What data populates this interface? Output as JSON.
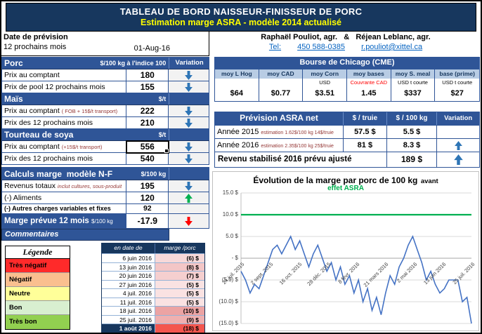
{
  "colors": {
    "navy": "#17375E",
    "blue": "#2F5597",
    "arrow_blue": "#2E75B6",
    "green": "#00B050",
    "red": "#FF0000",
    "yellow": "#FFFF00"
  },
  "header": {
    "title": "TABLEAU DE BORD NAISSEUR-FINISSEUR DE PORC",
    "subtitle": "Estimation marge ASRA - modèle 2014 actualisé"
  },
  "forecast": {
    "label": "Date de prévision",
    "period": "12 prochains mois",
    "date": "01-Aug-16"
  },
  "price_table": {
    "variation_header": "Variation",
    "sections": [
      {
        "title": "Porc",
        "unit": "$/100 kg à l'indice 100",
        "rows": [
          {
            "label": "Prix au comptant",
            "note": "",
            "value": "180",
            "arrow": "down"
          },
          {
            "label": "Prix de pool 12 prochains mois",
            "note": "",
            "value": "155",
            "arrow": "down"
          }
        ]
      },
      {
        "title": "Maïs",
        "unit": "$/t",
        "rows": [
          {
            "label": "Prix au comptant",
            "note": "( FOB + 15$/t transport)",
            "value": "222",
            "arrow": "down"
          },
          {
            "label": "Prix des 12 prochains mois",
            "note": "",
            "value": "210",
            "arrow": "down"
          }
        ]
      },
      {
        "title": "Tourteau de soya",
        "unit": "$/t",
        "rows": [
          {
            "label": "Prix au comptant",
            "note": "(+15$/t transport)",
            "value": "556",
            "arrow": "down"
          },
          {
            "label": "Prix des 12 prochains mois",
            "note": "",
            "value": "540",
            "arrow": "down"
          }
        ]
      }
    ]
  },
  "calc_table": {
    "title": "Calculs marge  modèle N-F",
    "unit": "$/100 kg",
    "rows": [
      {
        "label": "Revenus totaux",
        "note": "inclut cultures, sous-produit",
        "value": "195",
        "arrow": "down"
      },
      {
        "label": "(-) Aliments",
        "note": "",
        "value": "120",
        "arrow": "up"
      },
      {
        "label": "(-) Autres charges variables et fixes",
        "note": "",
        "value": "92",
        "arrow": ""
      }
    ],
    "marge_row": {
      "label": "Marge prévue 12 mois",
      "unit": "$/100 kg",
      "value": "-17.9",
      "arrow": "down"
    }
  },
  "commentaires_label": "Commentaires",
  "legend": {
    "title": "Légende",
    "items": [
      {
        "label": "Très négatif",
        "color": "#FF2A2A"
      },
      {
        "label": "Négatif",
        "color": "#FABF8F"
      },
      {
        "label": "Neutre",
        "color": "#FFFF99"
      },
      {
        "label": "Bon",
        "color": "#D8EFD0"
      },
      {
        "label": "Très bon",
        "color": "#92D050"
      }
    ]
  },
  "marge_history": {
    "date_header": "en date de",
    "value_header": "marge /porc",
    "rows": [
      {
        "date": "6 juin 2016",
        "value": "(6) $",
        "shade": "#F7D9D9"
      },
      {
        "date": "13 juin 2016",
        "value": "(8) $",
        "shade": "#F3C6C6"
      },
      {
        "date": "20 juin 2016",
        "value": "(7) $",
        "shade": "#F5CFCF"
      },
      {
        "date": "27 juin 2016",
        "value": "(5) $",
        "shade": "#FAE2E2"
      },
      {
        "date": "4 juil. 2016",
        "value": "(5) $",
        "shade": "#FAE2E2"
      },
      {
        "date": "11 juil. 2016",
        "value": "(5) $",
        "shade": "#FAE2E2"
      },
      {
        "date": "18 juil. 2016",
        "value": "(10) $",
        "shade": "#ECA3A3"
      },
      {
        "date": "25 juil. 2016",
        "value": "(9) $",
        "shade": "#EFB0B0"
      },
      {
        "date": "1 août 2016",
        "value": "(18) $",
        "shade": "#F4564E"
      }
    ]
  },
  "contact": {
    "names": "Raphaël Pouliot, agr.   &   Réjean Leblanc, agr.",
    "tel_label": "Tel:",
    "phone": "450 588-0385",
    "email": "r.pouliot@xittel.ca"
  },
  "cme": {
    "title": "Bourse de Chicago (CME)",
    "columns": [
      {
        "header": "moy L Hog",
        "unit": "",
        "value": "$64"
      },
      {
        "header": "moy CAD",
        "unit": "",
        "value": "$0.77"
      },
      {
        "header": "moy Corn",
        "unit": "USD",
        "value": "$3.51"
      },
      {
        "header": "moy bases",
        "unit": "Couvrante CAD",
        "value": "1.45"
      },
      {
        "header": "moy S. meal",
        "unit": "USD t courte",
        "value": "$337"
      },
      {
        "header": "base (prime)",
        "unit": "USD t courte",
        "value": "$27"
      }
    ]
  },
  "asra": {
    "title": "Prévision ASRA net",
    "col_truie": "$ / truie",
    "col_100kg": "$ / 100 kg",
    "col_variation": "Variation",
    "rows": [
      {
        "label": "Année 2015",
        "note": "estimation 1.62$/100 kg 14$/truie",
        "truie": "57.5 $",
        "per100": "5.5 $",
        "arrow": ""
      },
      {
        "label": "Année 2016",
        "note": "estimation 2.35$/100 kg 25$/truie",
        "truie": "81 $",
        "per100": "8.3 $",
        "arrow": "up"
      }
    ],
    "total": {
      "label": "Revenu stabilisé 2016 prévu ajusté",
      "value": "189 $",
      "arrow": "up"
    }
  },
  "chart_data": {
    "type": "line",
    "title": "Évolution de la marge par porc de 100 kg",
    "title_suffix": "avant",
    "subtitle": "effet ASRA",
    "ylim": [
      -15,
      15
    ],
    "ytick_step": 5,
    "ytick_labels": [
      "15.0 $",
      "10.0 $",
      "5.0 $",
      "- $",
      "(5.0) $",
      "(10.0) $",
      "(15.0) $"
    ],
    "x_labels": [
      "24 juil. 2015",
      "2 sept. 2015",
      "16 oct. 2015",
      "28 déc. 2015",
      "8 févr. 2016",
      "21 mars 2016",
      "2 mai 2016",
      "13 juin 2016",
      "25 juil. 2016"
    ],
    "grid": true,
    "legend_position": "none",
    "reference_line": {
      "value": 10,
      "color": "#00B050",
      "label": "effet ASRA"
    },
    "series": [
      {
        "name": "marge par porc avant effet ASRA",
        "color": "#4472C4",
        "values": [
          -3,
          -5,
          -8,
          -6,
          -7,
          -4,
          -1,
          2,
          3,
          1,
          3,
          5,
          2,
          4,
          1,
          -2,
          1,
          3,
          0,
          -3,
          -1,
          -5,
          -2,
          -6,
          -4,
          -8,
          -5,
          -10,
          -7,
          -12,
          -9,
          -13,
          -8,
          -4,
          -6,
          -2,
          0,
          3,
          5,
          2,
          -1,
          -5,
          -3,
          -6,
          -8,
          -7,
          -5,
          -5,
          -5,
          -10,
          -9,
          -18
        ]
      }
    ]
  }
}
